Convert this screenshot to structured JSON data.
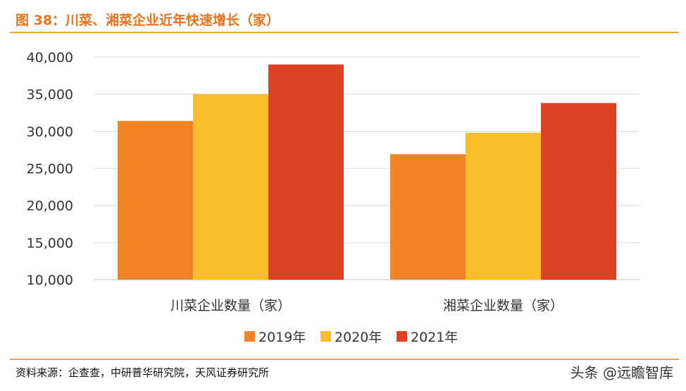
{
  "header": {
    "title": "图 38：川菜、湘菜企业近年快速增长（家）"
  },
  "footer": {
    "source": "资料来源：企查查，中研普华研究院，天风证券研究所",
    "watermark": "头条 @远瞻智库"
  },
  "colors": {
    "accent": "#e8731c",
    "rule": "#f0a04b"
  },
  "chart_data": {
    "type": "bar",
    "categories": [
      "川菜企业数量（家）",
      "湘菜企业数量（家）"
    ],
    "series": [
      {
        "name": "2019年",
        "color": "#f28427",
        "values": [
          31400,
          26900
        ]
      },
      {
        "name": "2020年",
        "color": "#f9bd2c",
        "values": [
          35000,
          29800
        ]
      },
      {
        "name": "2021年",
        "color": "#dc4121",
        "values": [
          39000,
          33800
        ]
      }
    ],
    "ylim": [
      10000,
      40000
    ],
    "yticks": [
      "10,000",
      "15,000",
      "20,000",
      "25,000",
      "30,000",
      "35,000",
      "40,000"
    ],
    "grid": true,
    "legend": "bottom"
  }
}
